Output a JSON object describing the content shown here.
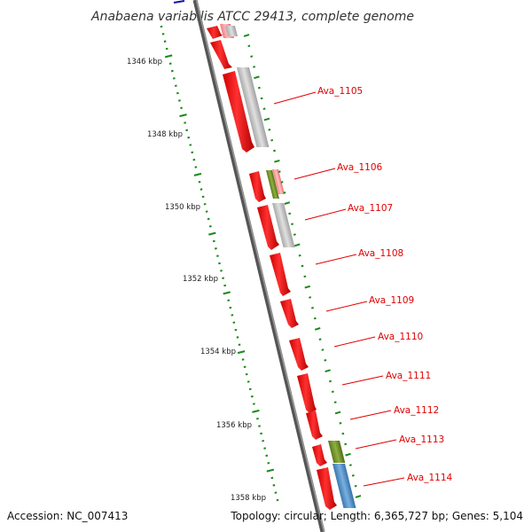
{
  "title": "Anabaena variabilis ATCC 29413, complete genome",
  "footer": {
    "accession": "Accession: NC_007413",
    "topology": "Topology: circular; Length: 6,365,727 bp; Genes: 5,104"
  },
  "scale": {
    "unit": "kbp",
    "tick_labels": [
      "1346 kbp",
      "1348 kbp",
      "1350 kbp",
      "1352 kbp",
      "1354 kbp",
      "1356 kbp",
      "1358 kbp"
    ]
  },
  "gene_labels": [
    "Ava_1105",
    "Ava_1106",
    "Ava_1107",
    "Ava_1108",
    "Ava_1109",
    "Ava_1110",
    "Ava_1111",
    "Ava_1112",
    "Ava_1113",
    "Ava_1114"
  ],
  "colors": {
    "cds": "#ff0000",
    "gene": "#c0c0c0",
    "label": "#e00000",
    "tick": "#1a8a1a",
    "backbone": "#777777",
    "green_feature": "#6b8e23",
    "blue_feature": "#4f8fc6",
    "pink_feature": "#f4a0a0"
  }
}
